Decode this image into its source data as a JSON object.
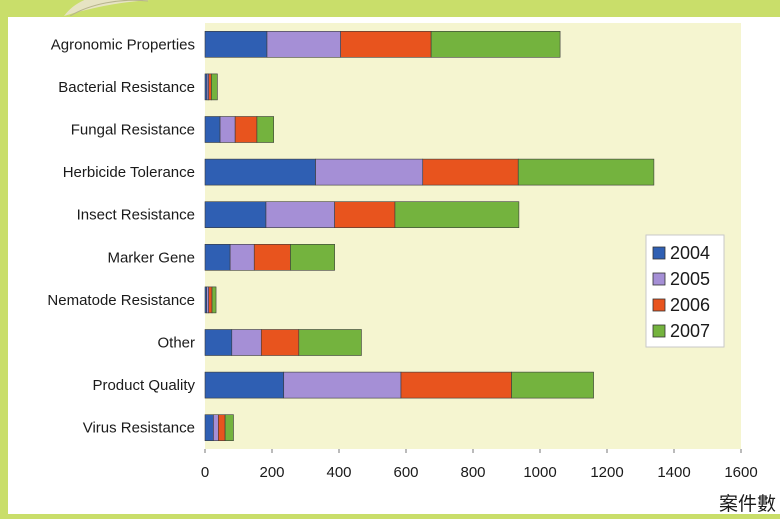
{
  "chart_data": {
    "type": "bar",
    "orientation": "horizontal",
    "stacked": true,
    "categories": [
      "Agronomic Properties",
      "Bacterial Resistance",
      "Fungal Resistance",
      "Herbicide Tolerance",
      "Insect Resistance",
      "Marker Gene",
      "Nematode Resistance",
      "Other",
      "Product Quality",
      "Virus Resistance"
    ],
    "series": [
      {
        "name": "2004",
        "color": "#2f5fb3",
        "values": [
          185,
          6,
          45,
          330,
          182,
          75,
          5,
          80,
          235,
          25
        ]
      },
      {
        "name": "2005",
        "color": "#a58fd6",
        "values": [
          220,
          5,
          45,
          320,
          205,
          72,
          6,
          88,
          350,
          15
        ]
      },
      {
        "name": "2006",
        "color": "#e8541e",
        "values": [
          270,
          8,
          65,
          285,
          180,
          108,
          10,
          112,
          330,
          20
        ]
      },
      {
        "name": "2007",
        "color": "#74b33e",
        "values": [
          385,
          18,
          50,
          405,
          370,
          132,
          12,
          187,
          245,
          25
        ]
      }
    ],
    "xlim": [
      0,
      1600
    ],
    "xticks": [
      "0",
      "200",
      "400",
      "600",
      "800",
      "1000",
      "1200",
      "1400",
      "1600"
    ],
    "xlabel": "案件數",
    "legend": "right",
    "grid": false,
    "plot_background": "#f5f5d0"
  }
}
